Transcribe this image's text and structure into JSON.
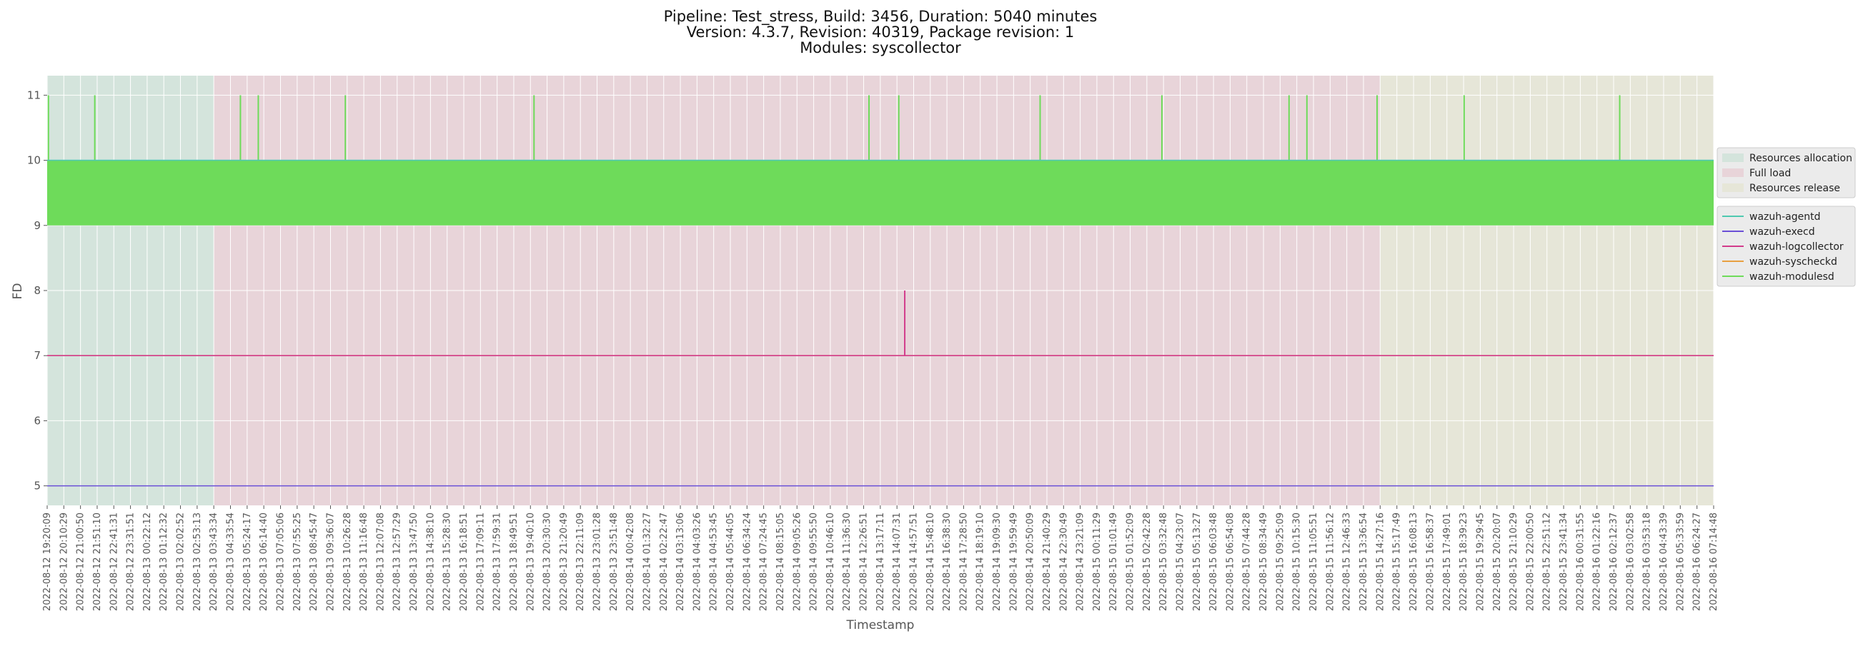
{
  "chart_data": {
    "type": "line",
    "title_lines": [
      "Pipeline: Test_stress, Build: 3456, Duration: 5040 minutes",
      "Version: 4.3.7, Revision: 40319, Package revision: 1",
      "Modules: syscollector"
    ],
    "xlabel": "Timestamp",
    "ylabel": "FD",
    "ylim": [
      4.7,
      11.3
    ],
    "yticks": [
      5,
      6,
      7,
      8,
      9,
      10,
      11
    ],
    "grid": true,
    "legend_position": "right",
    "x_ticks": [
      "2022-08-12 19:20:09",
      "2022-08-12 20:10:29",
      "2022-08-12 21:00:50",
      "2022-08-12 21:51:10",
      "2022-08-12 22:41:31",
      "2022-08-12 23:31:51",
      "2022-08-13 00:22:12",
      "2022-08-13 01:12:32",
      "2022-08-13 02:02:52",
      "2022-08-13 02:53:13",
      "2022-08-13 03:43:34",
      "2022-08-13 04:33:54",
      "2022-08-13 05:24:17",
      "2022-08-13 06:14:40",
      "2022-08-13 07:05:06",
      "2022-08-13 07:55:25",
      "2022-08-13 08:45:47",
      "2022-08-13 09:36:07",
      "2022-08-13 10:26:28",
      "2022-08-13 11:16:48",
      "2022-08-13 12:07:08",
      "2022-08-13 12:57:29",
      "2022-08-13 13:47:50",
      "2022-08-13 14:38:10",
      "2022-08-13 15:28:30",
      "2022-08-13 16:18:51",
      "2022-08-13 17:09:11",
      "2022-08-13 17:59:31",
      "2022-08-13 18:49:51",
      "2022-08-13 19:40:10",
      "2022-08-13 20:30:30",
      "2022-08-13 21:20:49",
      "2022-08-13 22:11:09",
      "2022-08-13 23:01:28",
      "2022-08-13 23:51:48",
      "2022-08-14 00:42:08",
      "2022-08-14 01:32:27",
      "2022-08-14 02:22:47",
      "2022-08-14 03:13:06",
      "2022-08-14 04:03:26",
      "2022-08-14 04:53:45",
      "2022-08-14 05:44:05",
      "2022-08-14 06:34:24",
      "2022-08-14 07:24:45",
      "2022-08-14 08:15:05",
      "2022-08-14 09:05:26",
      "2022-08-14 09:55:50",
      "2022-08-14 10:46:10",
      "2022-08-14 11:36:30",
      "2022-08-14 12:26:51",
      "2022-08-14 13:17:11",
      "2022-08-14 14:07:31",
      "2022-08-14 14:57:51",
      "2022-08-14 15:48:10",
      "2022-08-14 16:38:30",
      "2022-08-14 17:28:50",
      "2022-08-14 18:19:10",
      "2022-08-14 19:09:30",
      "2022-08-14 19:59:49",
      "2022-08-14 20:50:09",
      "2022-08-14 21:40:29",
      "2022-08-14 22:30:49",
      "2022-08-14 23:21:09",
      "2022-08-15 00:11:29",
      "2022-08-15 01:01:49",
      "2022-08-15 01:52:09",
      "2022-08-15 02:42:28",
      "2022-08-15 03:32:48",
      "2022-08-15 04:23:07",
      "2022-08-15 05:13:27",
      "2022-08-15 06:03:48",
      "2022-08-15 06:54:08",
      "2022-08-15 07:44:28",
      "2022-08-15 08:34:49",
      "2022-08-15 09:25:09",
      "2022-08-15 10:15:30",
      "2022-08-15 11:05:51",
      "2022-08-15 11:56:12",
      "2022-08-15 12:46:33",
      "2022-08-15 13:36:54",
      "2022-08-15 14:27:16",
      "2022-08-15 15:17:49",
      "2022-08-15 16:08:13",
      "2022-08-15 16:58:37",
      "2022-08-15 17:49:01",
      "2022-08-15 18:39:23",
      "2022-08-15 19:29:45",
      "2022-08-15 20:20:07",
      "2022-08-15 21:10:29",
      "2022-08-15 22:00:50",
      "2022-08-15 22:51:12",
      "2022-08-15 23:41:34",
      "2022-08-16 00:31:55",
      "2022-08-16 01:22:16",
      "2022-08-16 02:12:37",
      "2022-08-16 03:02:58",
      "2022-08-16 03:53:18",
      "2022-08-16 04:43:39",
      "2022-08-16 05:33:59",
      "2022-08-16 06:24:27",
      "2022-08-16 07:14:48"
    ],
    "phases": [
      {
        "name": "Resources allocation",
        "start": "2022-08-12 19:20:09",
        "end": "2022-08-13 03:43:34",
        "color": "#d4e4dc"
      },
      {
        "name": "Full load",
        "start": "2022-08-13 03:43:34",
        "end": "2022-08-15 14:27:16",
        "color": "#e8d4d9"
      },
      {
        "name": "Resources release",
        "start": "2022-08-15 14:27:16",
        "end": "2022-08-16 07:14:48",
        "color": "#e6e6d8"
      }
    ],
    "series": [
      {
        "name": "wazuh-agentd",
        "color": "#4fc9b0",
        "baseline": 10
      },
      {
        "name": "wazuh-execd",
        "color": "#6a4fd6",
        "baseline": 5
      },
      {
        "name": "wazuh-logcollector",
        "color": "#d23c8c",
        "baseline": 7,
        "spikes": [
          {
            "x": "2022-08-14 14:31:00",
            "y": 8
          }
        ]
      },
      {
        "name": "wazuh-syscheckd",
        "color": "#e8a040",
        "baseline": 7
      },
      {
        "name": "wazuh-modulesd",
        "color": "#6edb5a",
        "band": [
          9,
          10
        ],
        "spikes_y": 11,
        "spike_times": [
          "2022-08-12 19:24:00",
          "2022-08-12 21:44:00",
          "2022-08-13 05:04:00",
          "2022-08-13 05:58:00",
          "2022-08-13 10:21:00",
          "2022-08-13 19:51:00",
          "2022-08-14 12:43:00",
          "2022-08-14 14:13:00",
          "2022-08-14 21:20:00",
          "2022-08-15 03:28:00",
          "2022-08-15 09:52:00",
          "2022-08-15 10:46:00",
          "2022-08-15 14:18:00",
          "2022-08-15 18:41:00",
          "2022-08-16 02:31:00"
        ]
      }
    ]
  }
}
